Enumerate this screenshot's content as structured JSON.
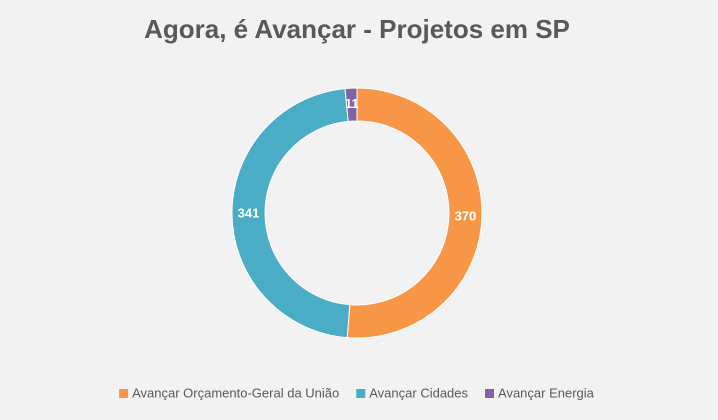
{
  "chart_data": {
    "type": "donut",
    "title": "Agora, é Avançar - Projetos em SP",
    "series": [
      {
        "name": "Avançar Orçamento-Geral da União",
        "color": "#f79646",
        "values": [
          370
        ]
      },
      {
        "name": "Avançar Cidades",
        "color": "#4bacc6",
        "values": [
          341
        ]
      },
      {
        "name": "Avançar Energia",
        "color": "#8064a2",
        "values": [
          11
        ]
      }
    ],
    "legend": "bottom"
  }
}
